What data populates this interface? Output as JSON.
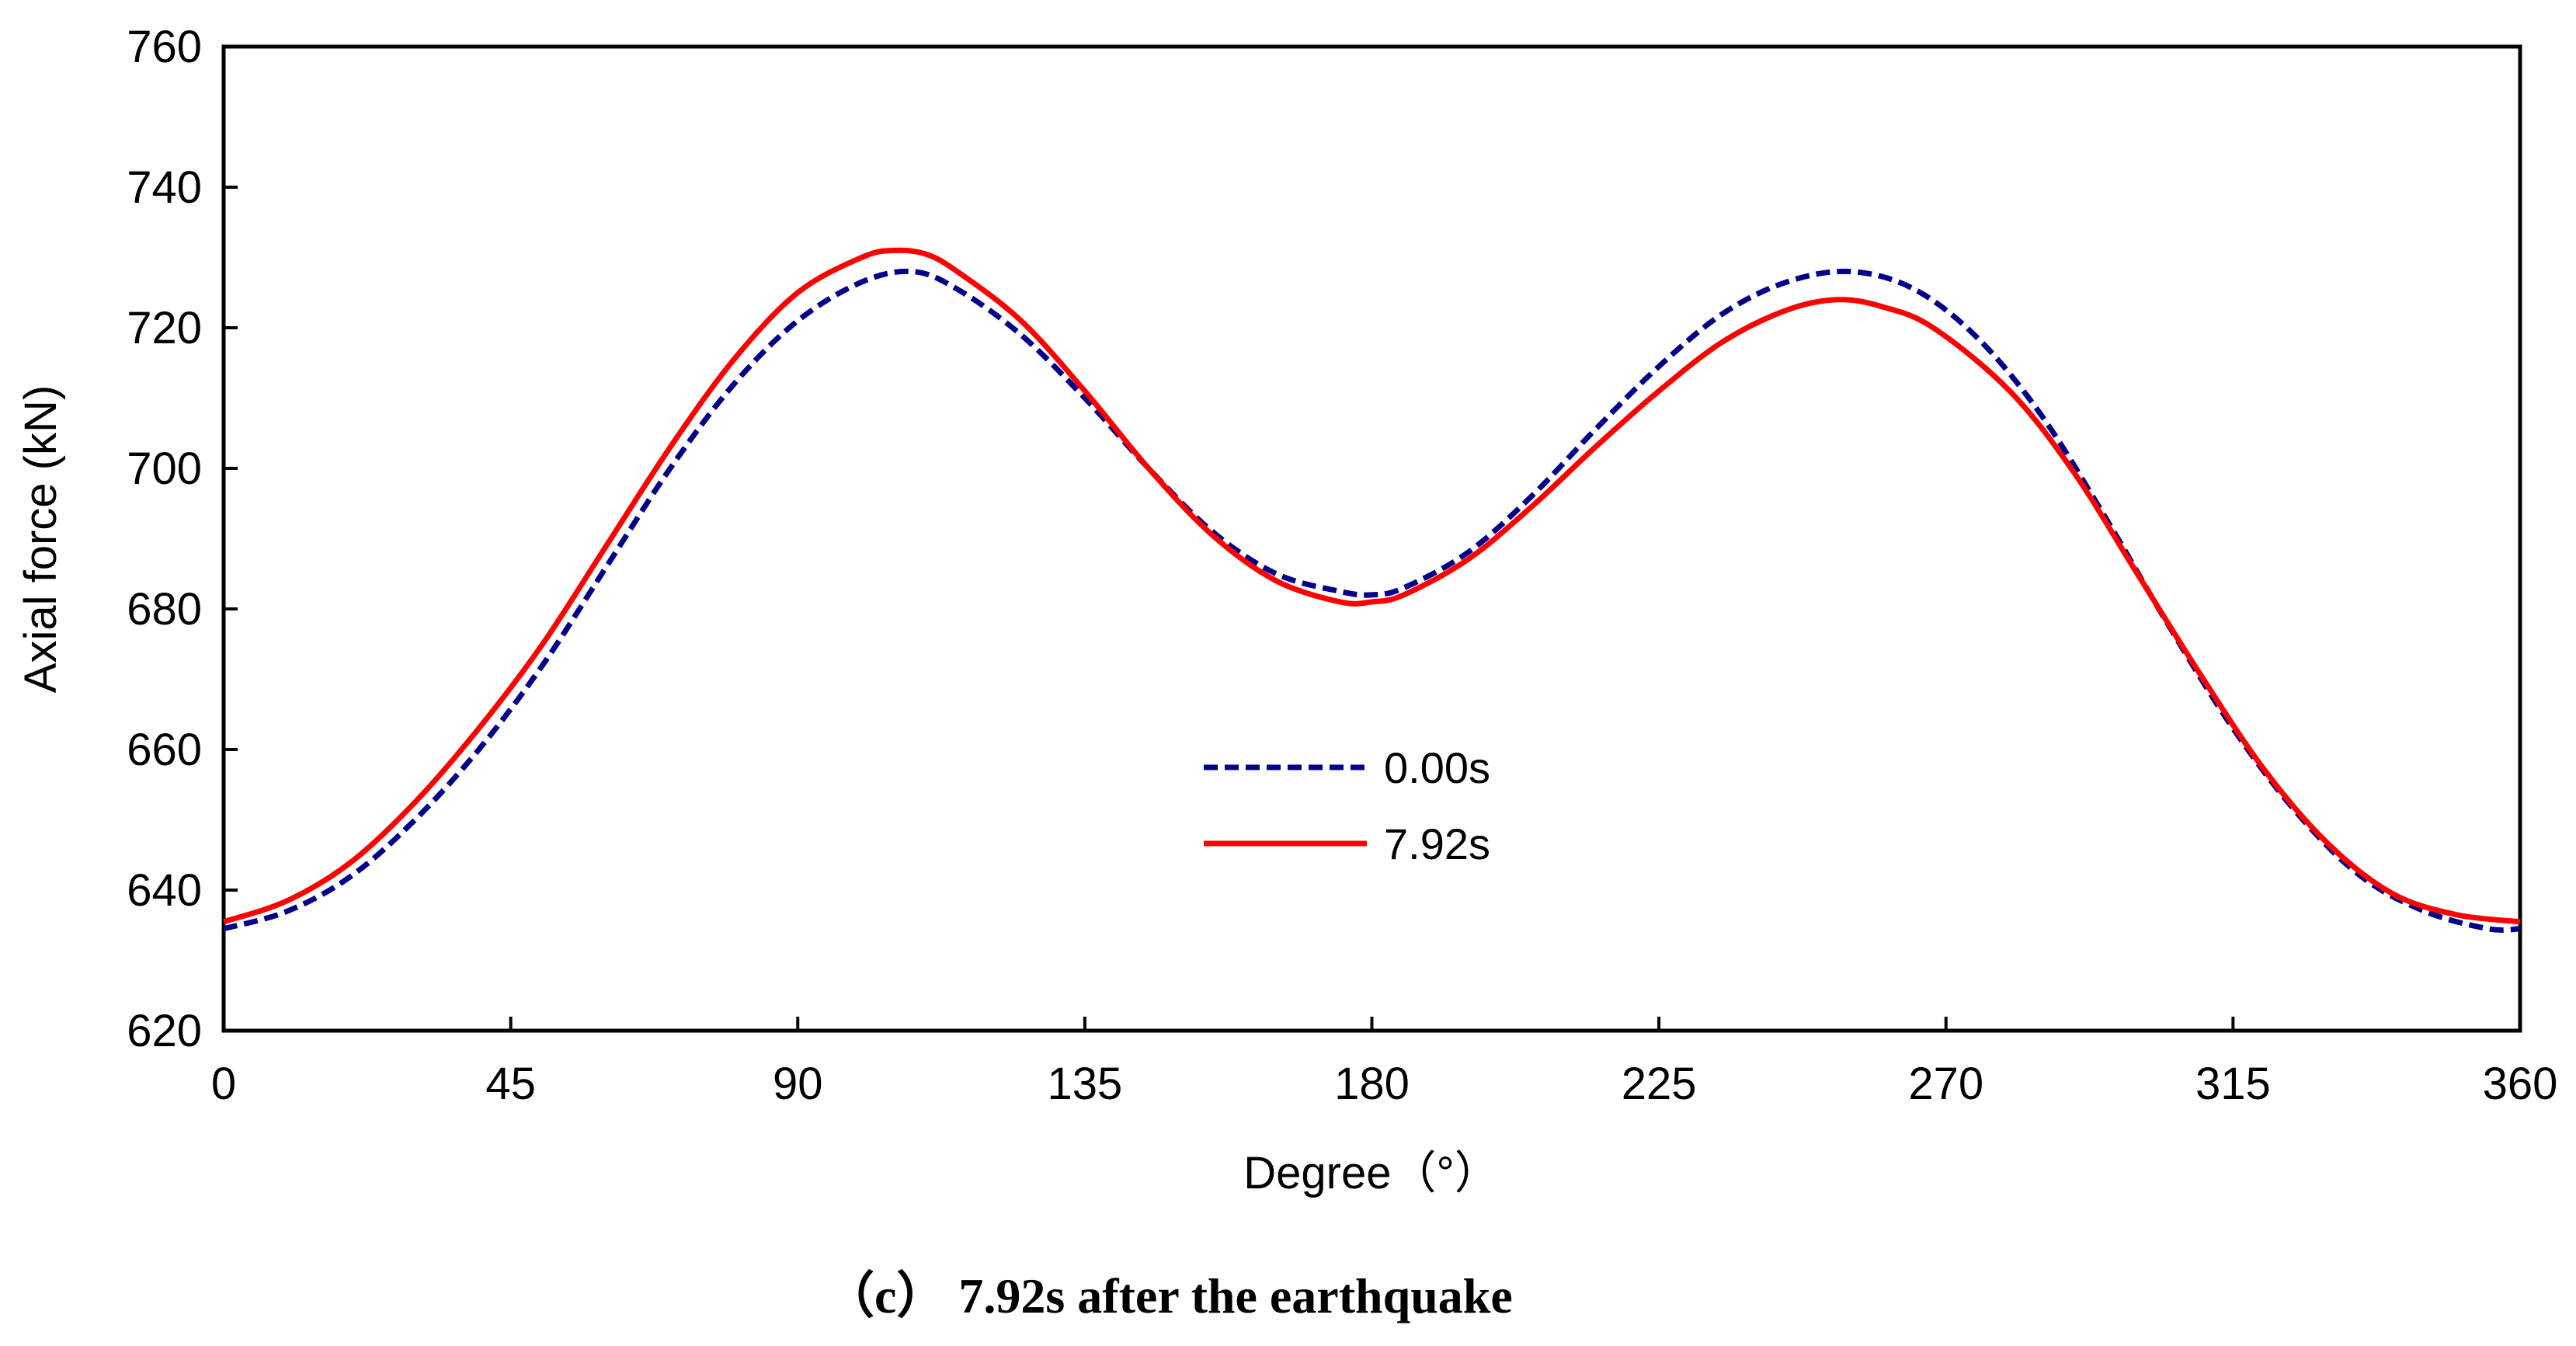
{
  "chart_data": {
    "type": "line",
    "title": "",
    "caption": "（c） 7.92s after the earthquake",
    "xlabel": "Degree（°）",
    "ylabel": "Axial force (kN)",
    "xlim": [
      0,
      360
    ],
    "ylim": [
      620,
      760
    ],
    "xticks": [
      "0",
      "45",
      "90",
      "135",
      "180",
      "225",
      "270",
      "315",
      "360"
    ],
    "yticks": [
      "620",
      "640",
      "660",
      "680",
      "700",
      "720",
      "740",
      "760"
    ],
    "grid": false,
    "legend_position": "center",
    "series": [
      {
        "name": "0.00s",
        "color": "#00008B",
        "style": "dashed",
        "x": [
          0,
          10,
          20,
          30,
          40,
          50,
          60,
          70,
          80,
          90,
          100,
          108,
          115,
          125,
          135,
          145,
          155,
          165,
          175,
          180,
          185,
          195,
          205,
          215,
          225,
          235,
          245,
          255,
          265,
          275,
          285,
          295,
          305,
          315,
          325,
          335,
          345,
          355,
          360
        ],
        "y": [
          634.5,
          637,
          642,
          650,
          660,
          672,
          686,
          700,
          712,
          721,
          726.5,
          728,
          725.5,
          719,
          710,
          700,
          691,
          685,
          682.5,
          682,
          683,
          688,
          696,
          705.5,
          714.5,
          722,
          726.5,
          728,
          725.5,
          718.5,
          707.5,
          693,
          677.5,
          663,
          651,
          642,
          637,
          634.5,
          634.5
        ]
      },
      {
        "name": "7.92s",
        "color": "#FF0000",
        "style": "solid",
        "x": [
          0,
          10,
          20,
          30,
          40,
          50,
          60,
          70,
          80,
          90,
          100,
          105,
          110,
          115,
          125,
          135,
          145,
          155,
          165,
          175,
          180,
          185,
          195,
          205,
          215,
          225,
          235,
          245,
          253,
          260,
          268,
          280,
          290,
          300,
          310,
          320,
          330,
          340,
          350,
          360
        ],
        "y": [
          635.5,
          638.5,
          644,
          652.5,
          663,
          675,
          689,
          703,
          715.5,
          725,
          730,
          731,
          730.5,
          728,
          721,
          711,
          700,
          690.5,
          684,
          681,
          681,
          682,
          687,
          694.5,
          703,
          711,
          718,
          722.5,
          724,
          723,
          720,
          711,
          699.5,
          685,
          670.5,
          657,
          646.5,
          639.5,
          636.5,
          635.5
        ]
      }
    ]
  }
}
